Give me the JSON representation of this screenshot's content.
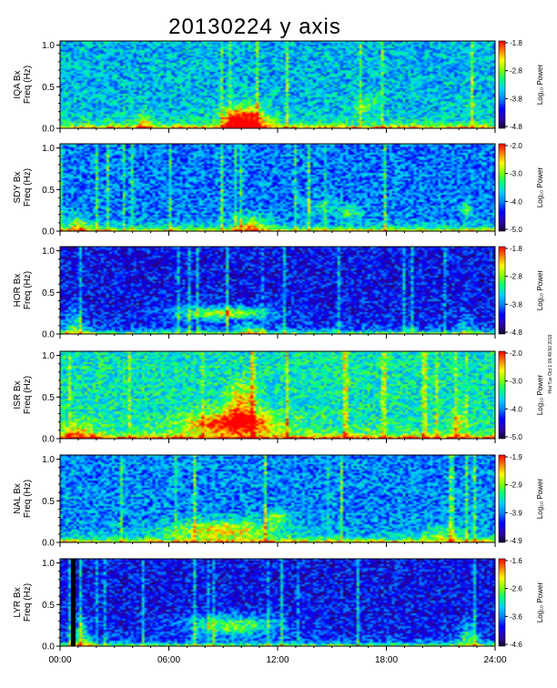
{
  "title": "20130224 y axis",
  "side_note": "Hist Tue Oct 1 09:49:50 2019",
  "chart_data": {
    "type": "heatmap",
    "x_ticks": [
      "00:00",
      "06:00",
      "12:00",
      "18:00",
      "24:00"
    ],
    "x_range_hours": [
      0,
      24
    ],
    "y_range_hz": [
      0,
      1.05
    ],
    "y_ticks": [
      "0.0",
      "0.5",
      "1.0"
    ],
    "colorbar_label": "Log₁₀ Power",
    "colorscale": [
      "#1a0033",
      "#2b00b0",
      "#0000ff",
      "#0080ff",
      "#00d0ff",
      "#00ff80",
      "#80ff00",
      "#ffff00",
      "#ff8000",
      "#ff0000"
    ],
    "panels": [
      {
        "station": "IQA Bx",
        "ylabel": "Freq (Hz)",
        "cbar_ticks": [
          "-1.8",
          "-2.8",
          "-3.8",
          "-4.8"
        ],
        "base": 0.42,
        "gap_hours": null,
        "features": [
          [
            4.6,
            0.05,
            0.35,
            0.12,
            0.3
          ],
          [
            10.5,
            0.08,
            0.9,
            0.18,
            0.55
          ],
          [
            16.8,
            0.28,
            0.8,
            0.12,
            0.18
          ],
          [
            22.7,
            0.28,
            0.3,
            0.06,
            0.15
          ],
          [
            9.5,
            0.1,
            0.7,
            0.15,
            0.4
          ]
        ]
      },
      {
        "station": "SDY Bx",
        "ylabel": "Freq (Hz)",
        "cbar_ticks": [
          "-2.0",
          "-3.0",
          "-4.0",
          "-5.0"
        ],
        "base": 0.34,
        "gap_hours": null,
        "features": [
          [
            10.5,
            0.07,
            0.9,
            0.12,
            0.35
          ],
          [
            14.5,
            0.3,
            0.9,
            0.08,
            0.15
          ],
          [
            16.0,
            0.22,
            0.6,
            0.1,
            0.2
          ],
          [
            22.4,
            0.25,
            0.3,
            0.08,
            0.3
          ],
          [
            1.0,
            0.05,
            0.6,
            0.15,
            0.3
          ]
        ]
      },
      {
        "station": "HOR Bx",
        "ylabel": "Freq (Hz)",
        "cbar_ticks": [
          "-1.8",
          "-2.8",
          "-3.8",
          "-4.8"
        ],
        "base": 0.2,
        "gap_hours": null,
        "features": [
          [
            9.0,
            0.25,
            2.6,
            0.08,
            0.5
          ],
          [
            0.8,
            0.05,
            0.6,
            0.25,
            0.3
          ],
          [
            22.4,
            0.05,
            0.4,
            0.2,
            0.2
          ],
          [
            10.5,
            0.05,
            0.8,
            0.08,
            0.25
          ]
        ]
      },
      {
        "station": "ISR Bx",
        "ylabel": "Freq (Hz)",
        "cbar_ticks": [
          "-2.0",
          "-3.0",
          "-4.0",
          "-5.0"
        ],
        "base": 0.5,
        "gap_hours": null,
        "features": [
          [
            9.5,
            0.18,
            2.5,
            0.14,
            0.5
          ],
          [
            10.0,
            0.4,
            0.8,
            0.25,
            0.35
          ],
          [
            22.0,
            0.2,
            0.4,
            0.2,
            0.2
          ],
          [
            1.0,
            0.05,
            1.0,
            0.15,
            0.25
          ]
        ]
      },
      {
        "station": "NAL Bx",
        "ylabel": "Freq (Hz)",
        "cbar_ticks": [
          "-1.9",
          "-2.9",
          "-3.9",
          "-4.9"
        ],
        "base": 0.36,
        "gap_hours": null,
        "features": [
          [
            9.0,
            0.15,
            3.0,
            0.12,
            0.4
          ],
          [
            12.0,
            0.3,
            0.6,
            0.08,
            0.3
          ],
          [
            21.0,
            0.1,
            1.2,
            0.1,
            0.2
          ]
        ]
      },
      {
        "station": "LYR Bx",
        "ylabel": "Freq (Hz)",
        "cbar_ticks": [
          "-1.6",
          "-2.6",
          "-3.6",
          "-4.6"
        ],
        "base": 0.2,
        "gap_hours": [
          0.6,
          0.85
        ],
        "features": [
          [
            9.5,
            0.25,
            2.5,
            0.12,
            0.45
          ],
          [
            22.5,
            0.1,
            0.5,
            0.2,
            0.3
          ],
          [
            1.2,
            0.05,
            0.5,
            0.3,
            0.35
          ]
        ]
      }
    ]
  }
}
